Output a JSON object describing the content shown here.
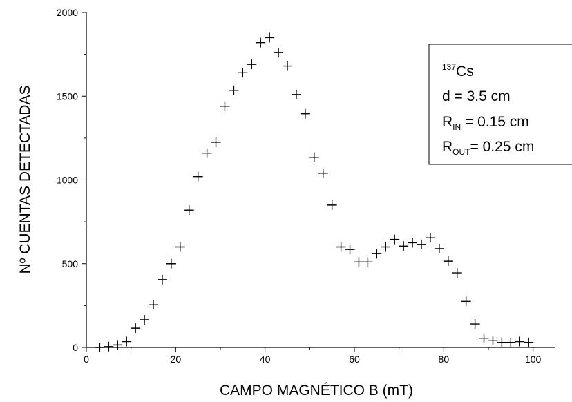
{
  "chart_data": {
    "type": "scatter",
    "marker": "plus",
    "xlabel": "CAMPO MAGNÉTICO B (mT)",
    "ylabel": "Nº CUENTAS DETECTADAS",
    "xlim": [
      0,
      105
    ],
    "ylim": [
      0,
      2000
    ],
    "xticks": [
      0,
      20,
      40,
      60,
      80,
      100
    ],
    "yticks": [
      0,
      500,
      1000,
      1500,
      2000
    ],
    "grid": false,
    "legend_placement": "top-right",
    "annotation": {
      "isotope_mass": "137",
      "isotope_symbol": "Cs",
      "line2": "d = 3.5 cm",
      "rin_main": "R",
      "rin_sub": "IN",
      "rin_value": " = 0.15 cm",
      "rout_main": "R",
      "rout_sub": "OUT",
      "rout_value": "= 0.25 cm"
    },
    "series": [
      {
        "points": [
          [
            3,
            0
          ],
          [
            5,
            5
          ],
          [
            7,
            15
          ],
          [
            9,
            35
          ],
          [
            11,
            115
          ],
          [
            13,
            165
          ],
          [
            15,
            255
          ],
          [
            17,
            405
          ],
          [
            19,
            500
          ],
          [
            21,
            600
          ],
          [
            23,
            820
          ],
          [
            25,
            1020
          ],
          [
            27,
            1160
          ],
          [
            29,
            1225
          ],
          [
            31,
            1440
          ],
          [
            33,
            1535
          ],
          [
            35,
            1640
          ],
          [
            37,
            1690
          ],
          [
            39,
            1820
          ],
          [
            41,
            1850
          ],
          [
            43,
            1760
          ],
          [
            45,
            1680
          ],
          [
            47,
            1510
          ],
          [
            49,
            1395
          ],
          [
            51,
            1135
          ],
          [
            53,
            1040
          ],
          [
            55,
            850
          ],
          [
            57,
            600
          ],
          [
            59,
            585
          ],
          [
            61,
            510
          ],
          [
            63,
            510
          ],
          [
            65,
            560
          ],
          [
            67,
            600
          ],
          [
            69,
            645
          ],
          [
            71,
            605
          ],
          [
            73,
            625
          ],
          [
            75,
            615
          ],
          [
            77,
            655
          ],
          [
            79,
            590
          ],
          [
            81,
            515
          ],
          [
            83,
            445
          ],
          [
            85,
            275
          ],
          [
            87,
            140
          ],
          [
            89,
            55
          ],
          [
            91,
            40
          ],
          [
            93,
            30
          ],
          [
            95,
            30
          ],
          [
            97,
            35
          ],
          [
            99,
            30
          ]
        ]
      }
    ]
  }
}
